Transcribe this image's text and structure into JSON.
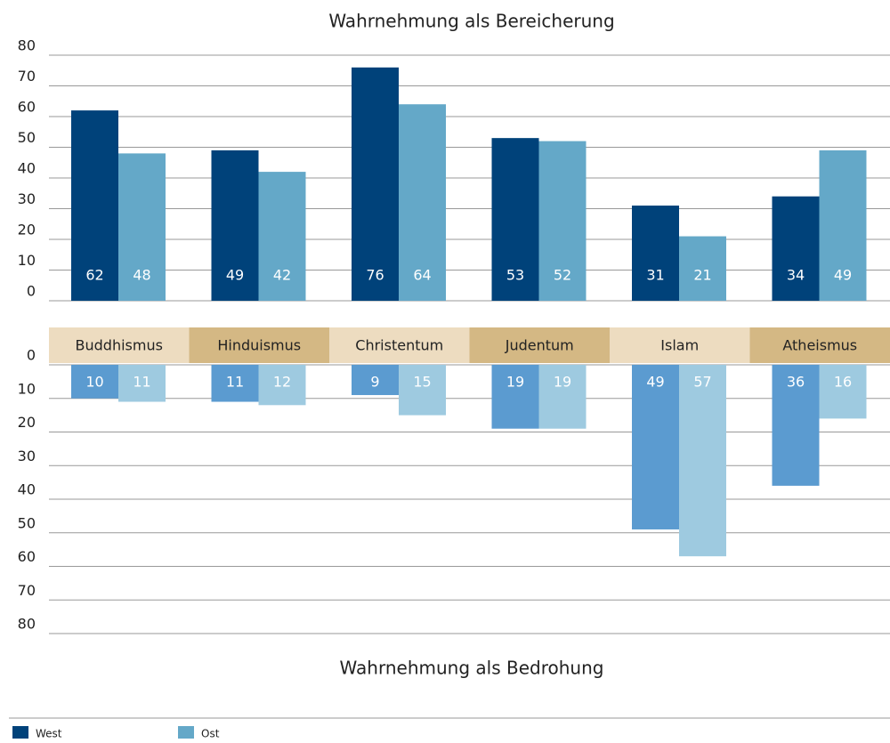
{
  "chart_data": [
    {
      "type": "bar",
      "title": "Wahrnehmung als Bereicherung",
      "categories": [
        "Buddhismus",
        "Hinduismus",
        "Christentum",
        "Judentum",
        "Islam",
        "Atheismus"
      ],
      "series": [
        {
          "name": "West",
          "color": "#00427a",
          "values": [
            62,
            49,
            76,
            53,
            31,
            34
          ]
        },
        {
          "name": "Ost",
          "color": "#64a8c8",
          "values": [
            48,
            42,
            64,
            52,
            21,
            49
          ]
        }
      ],
      "ylim": [
        0,
        80
      ],
      "yticks": [
        0,
        10,
        20,
        30,
        40,
        50,
        60,
        70,
        80
      ],
      "grid": true,
      "inverted": false,
      "legend": "bottom-left"
    },
    {
      "type": "bar",
      "title": "Wahrnehmung als Bedrohung",
      "series": [
        {
          "color": "#5b9bd0",
          "values": [
            10,
            11,
            9,
            19,
            49,
            36
          ]
        },
        {
          "color": "#9ecae0",
          "values": [
            11,
            12,
            15,
            19,
            57,
            16
          ]
        }
      ],
      "ylim": [
        0,
        80
      ],
      "yticks": [
        0,
        10,
        20,
        30,
        40,
        50,
        60,
        70,
        80
      ],
      "grid": true,
      "inverted": true
    }
  ]
}
